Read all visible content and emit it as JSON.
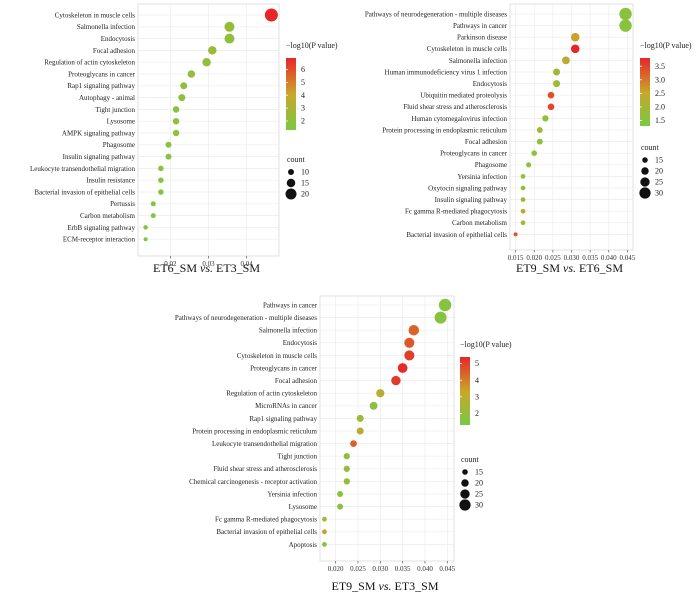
{
  "colors": {
    "low": "#7ac943",
    "mid": "#c9a62a",
    "high": "#e8262a"
  },
  "chart_data": [
    {
      "type": "scatter",
      "title": "ET6_SM vs. ET3_SM",
      "title_parts": [
        "ET6_SM ",
        "vs.",
        " ET3_SM"
      ],
      "xticks": [
        "0.02",
        "0.03",
        "0.04"
      ],
      "xlim": [
        0.0115,
        0.0485
      ],
      "legend": {
        "color_title": "−log10(P value)",
        "color_ticks": [
          "6",
          "5",
          "4",
          "3",
          "2"
        ],
        "color_range": [
          1.3,
          6.9
        ],
        "size_title": "count",
        "size_ticks": [
          "10",
          "15",
          "20"
        ]
      },
      "points": [
        {
          "term": "Cytoskeleton in muscle cells",
          "x": 0.0465,
          "logp": 6.9,
          "count": 24
        },
        {
          "term": "Salmonella infection",
          "x": 0.0355,
          "logp": 2.3,
          "count": 18
        },
        {
          "term": "Endocytosis",
          "x": 0.0355,
          "logp": 2.1,
          "count": 18
        },
        {
          "term": "Focal adhesion",
          "x": 0.031,
          "logp": 2.4,
          "count": 15
        },
        {
          "term": "Regulation of actin cytoskeleton",
          "x": 0.0295,
          "logp": 2.2,
          "count": 15
        },
        {
          "term": "Proteoglycans in cancer",
          "x": 0.0255,
          "logp": 2.2,
          "count": 13
        },
        {
          "term": "Rap1 signaling pathway",
          "x": 0.0235,
          "logp": 2.0,
          "count": 12
        },
        {
          "term": "Autophagy - animal",
          "x": 0.023,
          "logp": 2.0,
          "count": 12
        },
        {
          "term": "Tight junction",
          "x": 0.0215,
          "logp": 1.9,
          "count": 11
        },
        {
          "term": "Lysosome",
          "x": 0.0215,
          "logp": 1.9,
          "count": 11
        },
        {
          "term": "AMPK signaling pathway",
          "x": 0.0215,
          "logp": 1.9,
          "count": 11
        },
        {
          "term": "Phagosome",
          "x": 0.0195,
          "logp": 1.8,
          "count": 10
        },
        {
          "term": "Insulin signaling pathway",
          "x": 0.0195,
          "logp": 1.8,
          "count": 10
        },
        {
          "term": "Leukocyte transendothelial migration",
          "x": 0.0175,
          "logp": 1.7,
          "count": 9
        },
        {
          "term": "Insulin resistance",
          "x": 0.0175,
          "logp": 1.7,
          "count": 9
        },
        {
          "term": "Bacterial invasion of epithelial cells",
          "x": 0.0175,
          "logp": 1.7,
          "count": 9
        },
        {
          "term": "Pertussis",
          "x": 0.0155,
          "logp": 1.6,
          "count": 8
        },
        {
          "term": "Carbon metabolism",
          "x": 0.0155,
          "logp": 1.6,
          "count": 8
        },
        {
          "term": "ErbB signaling pathway",
          "x": 0.0135,
          "logp": 1.5,
          "count": 7
        },
        {
          "term": "ECM-receptor interaction",
          "x": 0.0135,
          "logp": 1.4,
          "count": 6
        }
      ]
    },
    {
      "type": "scatter",
      "title": "ET9_SM vs. ET6_SM",
      "title_parts": [
        "ET9_SM ",
        "vs.",
        " ET6_SM"
      ],
      "xticks": [
        "0.015",
        "0.020",
        "0.025",
        "0.030",
        "0.035",
        "0.040",
        "0.045"
      ],
      "xlim": [
        0.0135,
        0.0465
      ],
      "legend": {
        "color_title": "−log10(P value)",
        "color_ticks": [
          "3.5",
          "3.0",
          "2.5",
          "2.0",
          "1.5"
        ],
        "color_range": [
          1.3,
          3.8
        ],
        "size_title": "count",
        "size_ticks": [
          "15",
          "20",
          "25",
          "30"
        ]
      },
      "points": [
        {
          "term": "Pathways of neurodegeneration - multiple diseases",
          "x": 0.0445,
          "logp": 1.5,
          "count": 33
        },
        {
          "term": "Pathways in cancer",
          "x": 0.0445,
          "logp": 1.5,
          "count": 33
        },
        {
          "term": "Parkinson disease",
          "x": 0.031,
          "logp": 2.6,
          "count": 23
        },
        {
          "term": "Cytoskeleton in muscle cells",
          "x": 0.031,
          "logp": 3.8,
          "count": 23
        },
        {
          "term": "Salmonella infection",
          "x": 0.0285,
          "logp": 2.3,
          "count": 21
        },
        {
          "term": "Human immunodeficiency virus 1 infection",
          "x": 0.026,
          "logp": 1.9,
          "count": 19
        },
        {
          "term": "Endocytosis",
          "x": 0.026,
          "logp": 1.8,
          "count": 19
        },
        {
          "term": "Ubiquitin mediated proteolysis",
          "x": 0.0245,
          "logp": 3.4,
          "count": 18
        },
        {
          "term": "Fluid shear stress and atherosclerosis",
          "x": 0.0245,
          "logp": 3.5,
          "count": 18
        },
        {
          "term": "Human cytomegalovirus infection",
          "x": 0.023,
          "logp": 1.6,
          "count": 17
        },
        {
          "term": "Protein processing in endoplasmic reticulum",
          "x": 0.0215,
          "logp": 2.0,
          "count": 16
        },
        {
          "term": "Focal adhesion",
          "x": 0.0215,
          "logp": 1.6,
          "count": 16
        },
        {
          "term": "Proteoglycans in cancer",
          "x": 0.02,
          "logp": 1.6,
          "count": 15
        },
        {
          "term": "Phagosome",
          "x": 0.0185,
          "logp": 1.7,
          "count": 14
        },
        {
          "term": "Yersinia infection",
          "x": 0.017,
          "logp": 1.7,
          "count": 13
        },
        {
          "term": "Oxytocin signaling pathway",
          "x": 0.017,
          "logp": 1.6,
          "count": 13
        },
        {
          "term": "Insulin signaling pathway",
          "x": 0.017,
          "logp": 1.6,
          "count": 13
        },
        {
          "term": "Fc gamma R-mediated phagocytosis",
          "x": 0.017,
          "logp": 2.6,
          "count": 13
        },
        {
          "term": "Carbon metabolism",
          "x": 0.017,
          "logp": 2.0,
          "count": 13
        },
        {
          "term": "Bacterial invasion of epithelial cells",
          "x": 0.015,
          "logp": 3.3,
          "count": 11
        }
      ]
    },
    {
      "type": "scatter",
      "title": "ET9_SM vs. ET3_SM",
      "title_parts": [
        "ET9_SM ",
        "vs.",
        " ET3_SM"
      ],
      "xticks": [
        "0.020",
        "0.025",
        "0.030",
        "0.035",
        "0.040",
        "0.045"
      ],
      "xlim": [
        0.0165,
        0.0465
      ],
      "legend": {
        "color_title": "−log10(P value)",
        "color_ticks": [
          "5",
          "4",
          "3",
          "2"
        ],
        "color_range": [
          1.3,
          5.4
        ],
        "size_title": "count",
        "size_ticks": [
          "15",
          "20",
          "25",
          "30"
        ]
      },
      "points": [
        {
          "term": "Pathways in cancer",
          "x": 0.0445,
          "logp": 1.6,
          "count": 33
        },
        {
          "term": "Pathways of neurodegeneration - multiple diseases",
          "x": 0.0435,
          "logp": 1.6,
          "count": 32
        },
        {
          "term": "Salmonella infection",
          "x": 0.0375,
          "logp": 4.4,
          "count": 28
        },
        {
          "term": "Endocytosis",
          "x": 0.0365,
          "logp": 4.6,
          "count": 27
        },
        {
          "term": "Cytoskeleton in muscle cells",
          "x": 0.0365,
          "logp": 5.0,
          "count": 27
        },
        {
          "term": "Proteoglycans in cancer",
          "x": 0.035,
          "logp": 5.3,
          "count": 26
        },
        {
          "term": "Focal adhesion",
          "x": 0.0335,
          "logp": 5.1,
          "count": 25
        },
        {
          "term": "Regulation of actin cytoskeleton",
          "x": 0.03,
          "logp": 2.9,
          "count": 22
        },
        {
          "term": "MicroRNAs in cancer",
          "x": 0.0285,
          "logp": 1.8,
          "count": 21
        },
        {
          "term": "Rap1 signaling pathway",
          "x": 0.0255,
          "logp": 2.2,
          "count": 19
        },
        {
          "term": "Protein processing in endoplasmic reticulum",
          "x": 0.0255,
          "logp": 3.0,
          "count": 19
        },
        {
          "term": "Leukocyte transendothelial migration",
          "x": 0.024,
          "logp": 4.5,
          "count": 18
        },
        {
          "term": "Tight junction",
          "x": 0.0225,
          "logp": 1.9,
          "count": 17
        },
        {
          "term": "Fluid shear stress and atherosclerosis",
          "x": 0.0225,
          "logp": 2.0,
          "count": 17
        },
        {
          "term": "Chemical carcinogenesis - receptor activation",
          "x": 0.0225,
          "logp": 2.0,
          "count": 17
        },
        {
          "term": "Yersinia infection",
          "x": 0.021,
          "logp": 1.8,
          "count": 16
        },
        {
          "term": "Lysosome",
          "x": 0.021,
          "logp": 1.8,
          "count": 16
        },
        {
          "term": "Fc gamma R-mediated phagocytosis",
          "x": 0.0175,
          "logp": 2.5,
          "count": 13
        },
        {
          "term": "Bacterial invasion of epithelial cells",
          "x": 0.0175,
          "logp": 3.5,
          "count": 13
        },
        {
          "term": "Apoptosis",
          "x": 0.0175,
          "logp": 1.7,
          "count": 13
        }
      ]
    }
  ]
}
